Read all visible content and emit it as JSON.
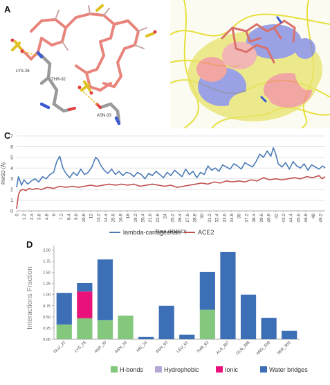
{
  "panels": {
    "a": {
      "letter": "A",
      "residues": [
        "LYS-26",
        "THR-92",
        "ASN-33"
      ]
    },
    "b": {
      "letter": "B"
    },
    "c": {
      "letter": "C"
    },
    "d": {
      "letter": "D"
    }
  },
  "chart_data": [
    {
      "panel": "C",
      "type": "line",
      "title": "",
      "xlabel": "Time (RMSD)",
      "ylabel": "RMSD (Å)",
      "xlim": [
        0,
        50
      ],
      "ylim": [
        0,
        7
      ],
      "yticks": [
        0,
        1,
        2,
        3,
        4,
        5,
        6,
        7
      ],
      "xtick_labels": [
        "0",
        "1.2",
        "2.4",
        "3.6",
        "4.8",
        "6",
        "7.2",
        "8.4",
        "9.6",
        "10.8",
        "12",
        "13.2",
        "14.4",
        "15.6",
        "16.8",
        "18",
        "19.2",
        "20.4",
        "21.6",
        "22.8",
        "24",
        "25.2",
        "26.4",
        "27.6",
        "28.8",
        "30",
        "31.2",
        "32.4",
        "33.6",
        "34.8",
        "36",
        "37.2",
        "38.4",
        "39.6",
        "40.8",
        "42",
        "43.2",
        "44.4",
        "45.6",
        "46.8",
        "48",
        "49.2"
      ],
      "grid": true,
      "legend": "bottom",
      "series": [
        {
          "name": "lambda-carrageenan",
          "color": "#4a7ab5",
          "x": [
            0,
            0.3,
            0.8,
            1.2,
            1.8,
            2.4,
            3.0,
            3.6,
            4.2,
            4.8,
            5.4,
            6.0,
            6.5,
            7.0,
            7.5,
            8.0,
            8.6,
            9.2,
            9.8,
            10.4,
            11.0,
            11.6,
            12.2,
            12.8,
            13.2,
            13.6,
            14.2,
            14.8,
            15.4,
            16.0,
            16.6,
            17.2,
            17.8,
            18.4,
            19.0,
            19.6,
            20.2,
            20.8,
            21.4,
            22.0,
            22.6,
            23.2,
            23.8,
            24.4,
            25.0,
            25.6,
            26.2,
            26.8,
            27.4,
            28.0,
            28.6,
            29.2,
            29.8,
            30.4,
            31.0,
            31.6,
            32.2,
            32.8,
            33.4,
            34.0,
            34.6,
            35.2,
            35.8,
            36.4,
            37.0,
            37.6,
            38.2,
            38.8,
            39.4,
            40.0,
            40.6,
            41.2,
            41.6,
            42.0,
            42.4,
            43.0,
            43.6,
            44.2,
            44.8,
            45.4,
            46.0,
            46.6,
            47.2,
            47.8,
            48.4,
            49.0,
            49.6,
            50.0
          ],
          "y": [
            2.2,
            3.2,
            2.4,
            2.9,
            2.5,
            2.8,
            3.0,
            2.7,
            3.2,
            3.0,
            3.4,
            3.6,
            4.6,
            5.1,
            4.0,
            3.5,
            3.1,
            3.6,
            3.3,
            3.9,
            3.4,
            3.6,
            4.1,
            5.0,
            4.8,
            4.3,
            3.8,
            3.5,
            3.9,
            3.4,
            3.7,
            3.3,
            3.6,
            3.5,
            3.2,
            3.6,
            3.4,
            3.0,
            3.5,
            3.3,
            3.7,
            3.4,
            3.1,
            3.6,
            3.3,
            3.8,
            3.5,
            3.2,
            3.9,
            3.4,
            3.7,
            3.1,
            3.6,
            3.4,
            4.2,
            3.8,
            4.0,
            3.7,
            4.3,
            4.1,
            3.9,
            4.4,
            4.2,
            3.9,
            4.5,
            4.3,
            4.1,
            4.6,
            5.3,
            5.0,
            5.6,
            5.1,
            5.9,
            5.3,
            4.4,
            4.1,
            4.5,
            3.9,
            4.6,
            4.2,
            4.0,
            4.4,
            3.8,
            4.3,
            4.1,
            3.9,
            4.2,
            4.0
          ]
        },
        {
          "name": "ACE2",
          "color": "#c0504d",
          "x": [
            0,
            0.3,
            0.6,
            1.0,
            1.5,
            2.0,
            2.6,
            3.2,
            4.0,
            5.0,
            6.0,
            7.0,
            8.0,
            9.0,
            10.0,
            11.0,
            12.0,
            13.0,
            14.0,
            15.0,
            16.0,
            17.0,
            18.0,
            19.0,
            20.0,
            21.0,
            22.0,
            23.0,
            24.0,
            25.0,
            26.0,
            27.0,
            28.0,
            29.0,
            30.0,
            31.0,
            32.0,
            33.0,
            34.0,
            35.0,
            36.0,
            37.0,
            38.0,
            39.0,
            40.0,
            41.0,
            42.0,
            43.0,
            44.0,
            45.0,
            46.0,
            47.0,
            48.0,
            49.0,
            49.5,
            50.0
          ],
          "y": [
            0.2,
            1.5,
            1.9,
            2.0,
            1.9,
            2.1,
            2.0,
            2.1,
            2.0,
            2.2,
            2.1,
            2.3,
            2.2,
            2.3,
            2.2,
            2.3,
            2.4,
            2.3,
            2.4,
            2.5,
            2.4,
            2.5,
            2.4,
            2.5,
            2.3,
            2.4,
            2.5,
            2.4,
            2.3,
            2.4,
            2.2,
            2.3,
            2.4,
            2.5,
            2.6,
            2.5,
            2.7,
            2.6,
            2.8,
            2.7,
            2.8,
            2.7,
            2.9,
            2.8,
            3.1,
            2.9,
            3.0,
            2.9,
            3.0,
            3.1,
            3.0,
            3.2,
            3.1,
            3.3,
            3.0,
            3.2
          ]
        }
      ]
    },
    {
      "panel": "D",
      "type": "bar",
      "title": "",
      "xlabel": "",
      "ylabel": "Interactions Fraction",
      "ylim": [
        0,
        2.1
      ],
      "yticks": [
        0,
        0.25,
        0.5,
        0.75,
        1.0,
        1.25,
        1.5,
        1.75,
        2.0
      ],
      "ytick_labels": [
        "0.00",
        "0.25",
        "0.50",
        "0.75",
        "1.00",
        "1.25",
        "1.50",
        "1.75",
        "2.00"
      ],
      "stacked": true,
      "legend": "bottom",
      "categories": [
        "GLU_22",
        "LYS_26",
        "ASP_30",
        "ASN_33",
        "HIS_34",
        "ASN_90",
        "LEU_91",
        "THR_92",
        "ALA_387",
        "GLN_388",
        "ARG_559",
        "SER_563"
      ],
      "series": [
        {
          "name": "H-bonds",
          "color": "#84c87e",
          "values": [
            0.33,
            0.47,
            0.43,
            0.53,
            0,
            0,
            0,
            0.66,
            0,
            0,
            0,
            0
          ]
        },
        {
          "name": "Hydrophobic",
          "color": "#b4a7d6",
          "values": [
            0,
            0,
            0,
            0,
            0,
            0,
            0,
            0,
            0,
            0,
            0,
            0
          ]
        },
        {
          "name": "Ionic",
          "color": "#e8127a",
          "values": [
            0,
            0.6,
            0,
            0,
            0,
            0,
            0,
            0,
            0,
            0,
            0,
            0
          ]
        },
        {
          "name": "Water bridges",
          "color": "#3d6fb6",
          "values": [
            0.71,
            0.19,
            1.36,
            0,
            0.05,
            0.75,
            0.1,
            0.85,
            1.96,
            1.0,
            0.48,
            0.19
          ]
        }
      ]
    }
  ]
}
